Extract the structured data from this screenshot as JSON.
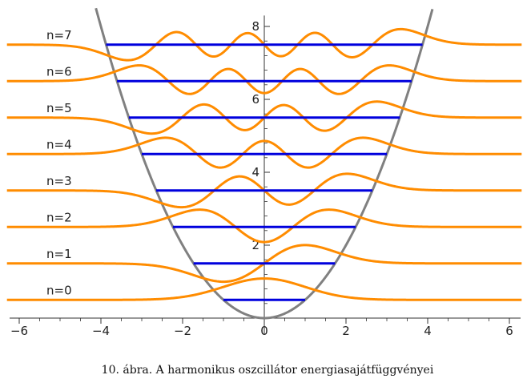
{
  "chart_data": {
    "type": "line",
    "title": "",
    "caption": "10. ábra. A harmonikus oszcillátor energiasajátfüggvényei",
    "xlabel": "",
    "ylabel": "",
    "xlim": [
      -6.3,
      6.3
    ],
    "ylim": [
      -0.6,
      8.3
    ],
    "x_ticks": [
      -6,
      -4,
      -2,
      0,
      2,
      4,
      6
    ],
    "x_tick_labels": [
      "−6",
      "−4",
      "−2",
      "0",
      "2",
      "4",
      "6"
    ],
    "y_ticks": [
      2,
      4,
      6,
      8
    ],
    "y_tick_labels": [
      "2",
      "4",
      "6",
      "8"
    ],
    "potential": {
      "name": "V(x) = x²/2",
      "color": "#808080"
    },
    "levels": [
      {
        "n": 0,
        "label": "n=0",
        "energy": 0.5
      },
      {
        "n": 1,
        "label": "n=1",
        "energy": 1.5
      },
      {
        "n": 2,
        "label": "n=2",
        "energy": 2.5
      },
      {
        "n": 3,
        "label": "n=3",
        "energy": 3.5
      },
      {
        "n": 4,
        "label": "n=4",
        "energy": 4.5
      },
      {
        "n": 5,
        "label": "n=5",
        "energy": 5.5
      },
      {
        "n": 6,
        "label": "n=6",
        "energy": 6.5
      },
      {
        "n": 7,
        "label": "n=7",
        "energy": 7.5
      }
    ],
    "wavefunction_color": "#ff8c00",
    "level_color": "#0000dd"
  }
}
